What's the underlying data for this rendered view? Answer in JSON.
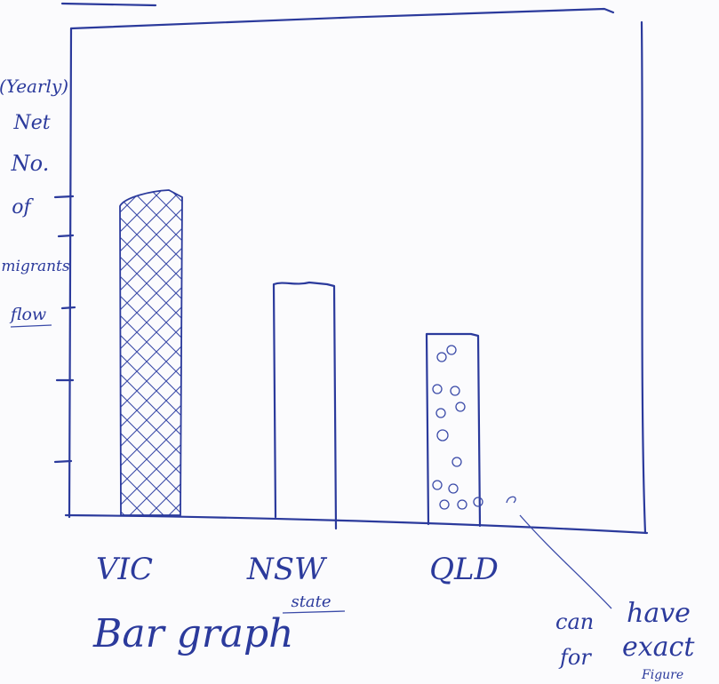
{
  "y_label": {
    "lines": [
      "(Yearly)",
      "Net",
      "No.",
      "of",
      "migrants",
      "flow"
    ]
  },
  "categories": [
    "VIC",
    "NSW",
    "QLD"
  ],
  "x_label": "state",
  "caption": "Bar graph",
  "annotation": {
    "lines": [
      "can",
      "have",
      "for",
      "exact",
      "Figure"
    ]
  }
}
